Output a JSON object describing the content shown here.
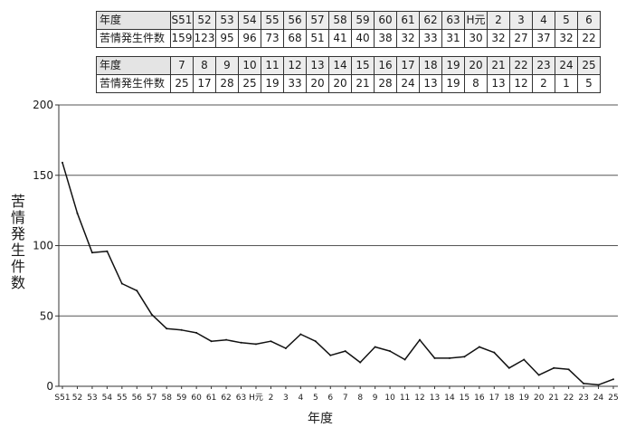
{
  "tables": [
    {
      "row1_label": "年度",
      "row2_label": "苦情発生件数",
      "years": [
        "S51",
        "52",
        "53",
        "54",
        "55",
        "56",
        "57",
        "58",
        "59",
        "60",
        "61",
        "62",
        "63",
        "H元",
        "2",
        "3",
        "4",
        "5",
        "6"
      ],
      "counts": [
        "159",
        "123",
        "95",
        "96",
        "73",
        "68",
        "51",
        "41",
        "40",
        "38",
        "32",
        "33",
        "31",
        "30",
        "32",
        "27",
        "37",
        "32",
        "22"
      ]
    },
    {
      "row1_label": "年度",
      "row2_label": "苦情発生件数",
      "years": [
        "7",
        "8",
        "9",
        "10",
        "11",
        "12",
        "13",
        "14",
        "15",
        "16",
        "17",
        "18",
        "19",
        "20",
        "21",
        "22",
        "23",
        "24",
        "25"
      ],
      "counts": [
        "25",
        "17",
        "28",
        "25",
        "19",
        "33",
        "20",
        "20",
        "21",
        "28",
        "24",
        "13",
        "19",
        "8",
        "13",
        "12",
        "2",
        "1",
        "5"
      ]
    }
  ],
  "chart_data": {
    "type": "line",
    "xlabel": "年度",
    "ylabel": "苦情発生件数",
    "ylim": [
      0,
      200
    ],
    "yticks": [
      "0",
      "50",
      "100",
      "150",
      "200"
    ],
    "grid": "horizontal",
    "categories": [
      "S51",
      "52",
      "53",
      "54",
      "55",
      "56",
      "57",
      "58",
      "59",
      "60",
      "61",
      "62",
      "63",
      "H元",
      "2",
      "3",
      "4",
      "5",
      "6",
      "7",
      "8",
      "9",
      "10",
      "11",
      "12",
      "13",
      "14",
      "15",
      "16",
      "17",
      "18",
      "19",
      "20",
      "21",
      "22",
      "23",
      "24",
      "25"
    ],
    "values": [
      159,
      123,
      95,
      96,
      73,
      68,
      51,
      41,
      40,
      38,
      32,
      33,
      31,
      30,
      32,
      27,
      37,
      32,
      22,
      25,
      17,
      28,
      25,
      19,
      33,
      20,
      20,
      21,
      28,
      24,
      13,
      19,
      8,
      13,
      12,
      2,
      1,
      5
    ],
    "colors": {
      "line": "#111111",
      "grid": "#555555"
    }
  }
}
